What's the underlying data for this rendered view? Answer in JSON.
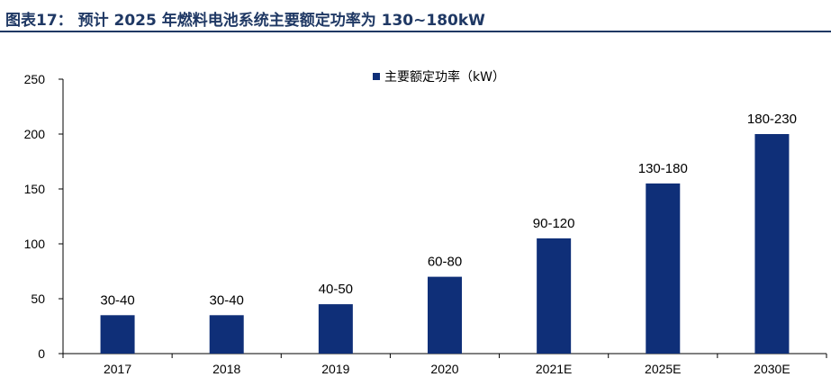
{
  "header": {
    "title": "图表17：  预计 2025 年燃料电池系统主要额定功率为 130~180kW"
  },
  "chart_data": {
    "type": "bar",
    "categories": [
      "2017",
      "2018",
      "2019",
      "2020",
      "2021E",
      "2025E",
      "2030E"
    ],
    "series": [
      {
        "name": "主要额定功率（kW）",
        "values": [
          35,
          35,
          45,
          70,
          105,
          155,
          200
        ],
        "labels": [
          "30-40",
          "30-40",
          "40-50",
          "60-80",
          "90-120",
          "130-180",
          "180-230"
        ]
      }
    ],
    "ylim": [
      0,
      250
    ],
    "yticks": [
      0,
      50,
      100,
      150,
      200,
      250
    ],
    "grid": false,
    "legend_position": "top-center",
    "bar_color": "#0f2f78"
  }
}
